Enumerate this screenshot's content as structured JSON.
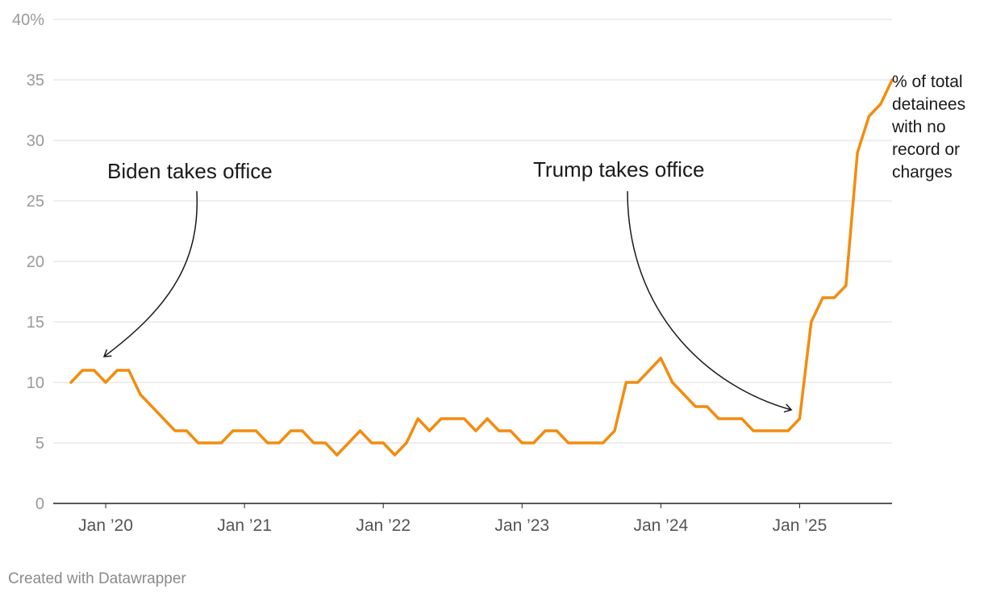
{
  "chart_data": {
    "type": "line",
    "title": "",
    "xlabel": "",
    "ylabel": "",
    "ylim": [
      0,
      40
    ],
    "grid": true,
    "y_ticks": [
      {
        "value": 0,
        "label": "0"
      },
      {
        "value": 5,
        "label": "5"
      },
      {
        "value": 10,
        "label": "10"
      },
      {
        "value": 15,
        "label": "15"
      },
      {
        "value": 20,
        "label": "20"
      },
      {
        "value": 25,
        "label": "25"
      },
      {
        "value": 30,
        "label": "30"
      },
      {
        "value": 35,
        "label": "35"
      },
      {
        "value": 40,
        "label": "40%"
      }
    ],
    "x_ticks": [
      {
        "index": 3,
        "label": "Jan ’20"
      },
      {
        "index": 15,
        "label": "Jan ’21"
      },
      {
        "index": 27,
        "label": "Jan ’22"
      },
      {
        "index": 39,
        "label": "Jan ’23"
      },
      {
        "index": 51,
        "label": "Jan ’24"
      },
      {
        "index": 63,
        "label": "Jan ’25"
      }
    ],
    "series": [
      {
        "name": "% of total detainees with no record or charges",
        "label_lines": [
          "% of total",
          "detainees",
          "with no",
          "record or",
          "charges"
        ],
        "color": "#f28c0f",
        "values": [
          10,
          11,
          11,
          10,
          11,
          11,
          9,
          8,
          7,
          6,
          6,
          5,
          5,
          5,
          6,
          6,
          6,
          5,
          5,
          6,
          6,
          5,
          5,
          4,
          5,
          6,
          5,
          5,
          4,
          5,
          7,
          6,
          7,
          7,
          7,
          6,
          7,
          6,
          6,
          5,
          5,
          6,
          6,
          5,
          5,
          5,
          5,
          6,
          10,
          10,
          11,
          12,
          10,
          9,
          8,
          8,
          7,
          7,
          7,
          6,
          6,
          6,
          6,
          7,
          15,
          17,
          17,
          18,
          29,
          32,
          33,
          35
        ]
      }
    ],
    "annotations": [
      {
        "text": "Biden takes office",
        "target_index": 3,
        "target_value": 12.2
      },
      {
        "text": "Trump takes office",
        "target_index": 62,
        "target_value": 7.8
      }
    ],
    "credit": "Created with Datawrapper"
  }
}
